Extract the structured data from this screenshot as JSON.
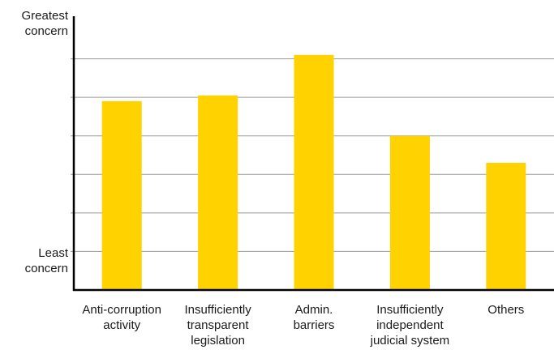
{
  "chart_data": {
    "type": "bar",
    "categories": [
      "Anti-corruption\nactivity",
      "Insufficiently\ntransparent\nlegislation",
      "Admin.\nbarriers",
      "Insufficiently\nindependent\njudicial system",
      "Others"
    ],
    "values": [
      4.9,
      5.05,
      6.1,
      4.0,
      3.3
    ],
    "ylim": [
      0,
      7
    ],
    "y_labels": {
      "top": "Greatest\nconcern",
      "bottom": "Least\nconcern"
    },
    "grid": true,
    "bar_color": "#FFD200",
    "grid_color": "#9a9a9a",
    "axis_color": "#000000"
  }
}
